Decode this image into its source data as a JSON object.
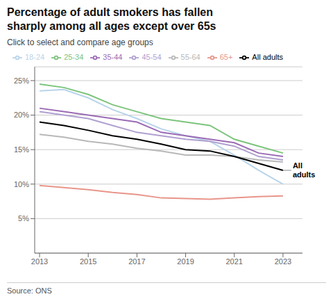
{
  "chart_data": {
    "type": "line",
    "title": "Percentage of adult smokers has fallen\nsharply among all ages except over 65s",
    "subtitle": "Click to select and compare age groups",
    "source": "Source: ONS",
    "x": [
      2013,
      2014,
      2015,
      2016,
      2017,
      2018,
      2019,
      2020,
      2021,
      2022,
      2023
    ],
    "series": [
      {
        "name": "18-24",
        "color": "#b8d4ea",
        "values": [
          23.5,
          23.7,
          22.5,
          20.8,
          19.5,
          18.0,
          17.0,
          16.2,
          14.2,
          12.0,
          10.0
        ]
      },
      {
        "name": "25-34",
        "color": "#7cc47c",
        "values": [
          24.5,
          24.0,
          23.0,
          21.5,
          20.5,
          19.5,
          19.0,
          18.5,
          16.5,
          15.5,
          14.5
        ]
      },
      {
        "name": "35-44",
        "color": "#9b6bb5",
        "values": [
          21.0,
          20.5,
          20.0,
          19.5,
          19.0,
          17.5,
          17.0,
          16.5,
          16.0,
          14.5,
          14.0
        ]
      },
      {
        "name": "45-54",
        "color": "#b0a0d0",
        "values": [
          20.5,
          20.0,
          19.5,
          18.5,
          17.5,
          17.0,
          16.5,
          16.2,
          15.5,
          14.0,
          13.5
        ]
      },
      {
        "name": "55-64",
        "color": "#b8b8b8",
        "values": [
          17.2,
          16.8,
          16.2,
          15.8,
          15.2,
          14.8,
          14.2,
          14.2,
          14.0,
          13.5,
          13.2
        ]
      },
      {
        "name": "65+",
        "color": "#e8958a",
        "values": [
          9.8,
          9.5,
          9.2,
          8.8,
          8.5,
          8.0,
          7.9,
          7.8,
          8.0,
          8.2,
          8.3
        ]
      },
      {
        "name": "All adults",
        "color": "#000000",
        "values": [
          19.0,
          18.5,
          17.8,
          17.0,
          16.5,
          15.8,
          15.0,
          14.8,
          14.0,
          13.0,
          12.0
        ]
      }
    ],
    "xlim": [
      2012.8,
      2023.8
    ],
    "xticks": [
      2013,
      2015,
      2017,
      2019,
      2021,
      2023
    ],
    "ylim": [
      0,
      27
    ],
    "yticks": [
      {
        "value": 5,
        "label": "5%"
      },
      {
        "value": 10,
        "label": "10%"
      },
      {
        "value": 15,
        "label": "15%"
      },
      {
        "value": 20,
        "label": "20%"
      },
      {
        "value": 25,
        "label": "25%"
      }
    ],
    "grid": true,
    "legend": "top",
    "annotations": [
      {
        "text": "All\nadults",
        "x": 2023,
        "y": 12.0
      }
    ]
  }
}
